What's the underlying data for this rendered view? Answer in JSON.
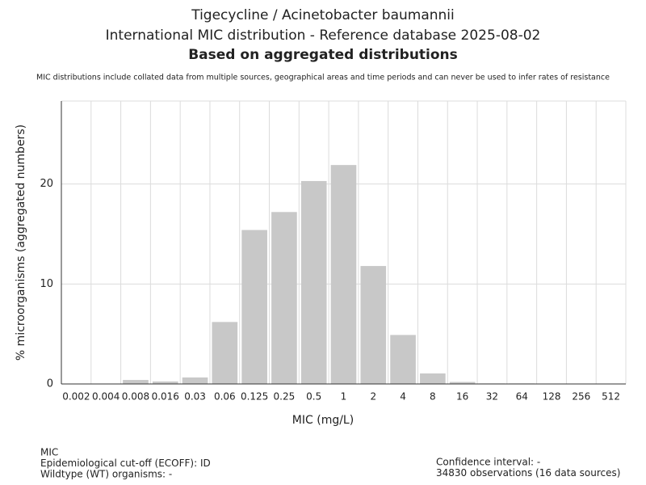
{
  "chart_data": {
    "type": "bar",
    "title": "Tigecycline / Acinetobacter baumannii",
    "subtitle": "International MIC distribution - Reference database 2025-08-02",
    "heading": "Based on aggregated distributions",
    "note": "MIC distributions include collated data from multiple sources, geographical areas and time periods and can never be used to infer rates of resistance",
    "x_label": "MIC (mg/L)",
    "y_label": "% microorganisms (aggregated numbers)",
    "categories": [
      "0.002",
      "0.004",
      "0.008",
      "0.016",
      "0.03",
      "0.06",
      "0.125",
      "0.25",
      "0.5",
      "1",
      "2",
      "4",
      "8",
      "16",
      "32",
      "64",
      "128",
      "256",
      "512"
    ],
    "values": [
      0,
      0,
      0.4,
      0.25,
      0.65,
      6.2,
      15.4,
      17.2,
      20.3,
      21.9,
      11.8,
      4.9,
      1.05,
      0.2,
      0.05,
      0.05,
      0,
      0,
      0
    ],
    "color": "#c8c8c8",
    "ylim": [
      0,
      28.3
    ],
    "yticks": [
      0,
      10,
      20
    ],
    "grid": true,
    "footer_left": [
      "MIC",
      "Epidemiological cut-off (ECOFF): ID",
      "Wildtype (WT) organisms:  -"
    ],
    "footer_right": [
      "Confidence interval: -",
      "34830 observations (16 data sources)"
    ]
  }
}
